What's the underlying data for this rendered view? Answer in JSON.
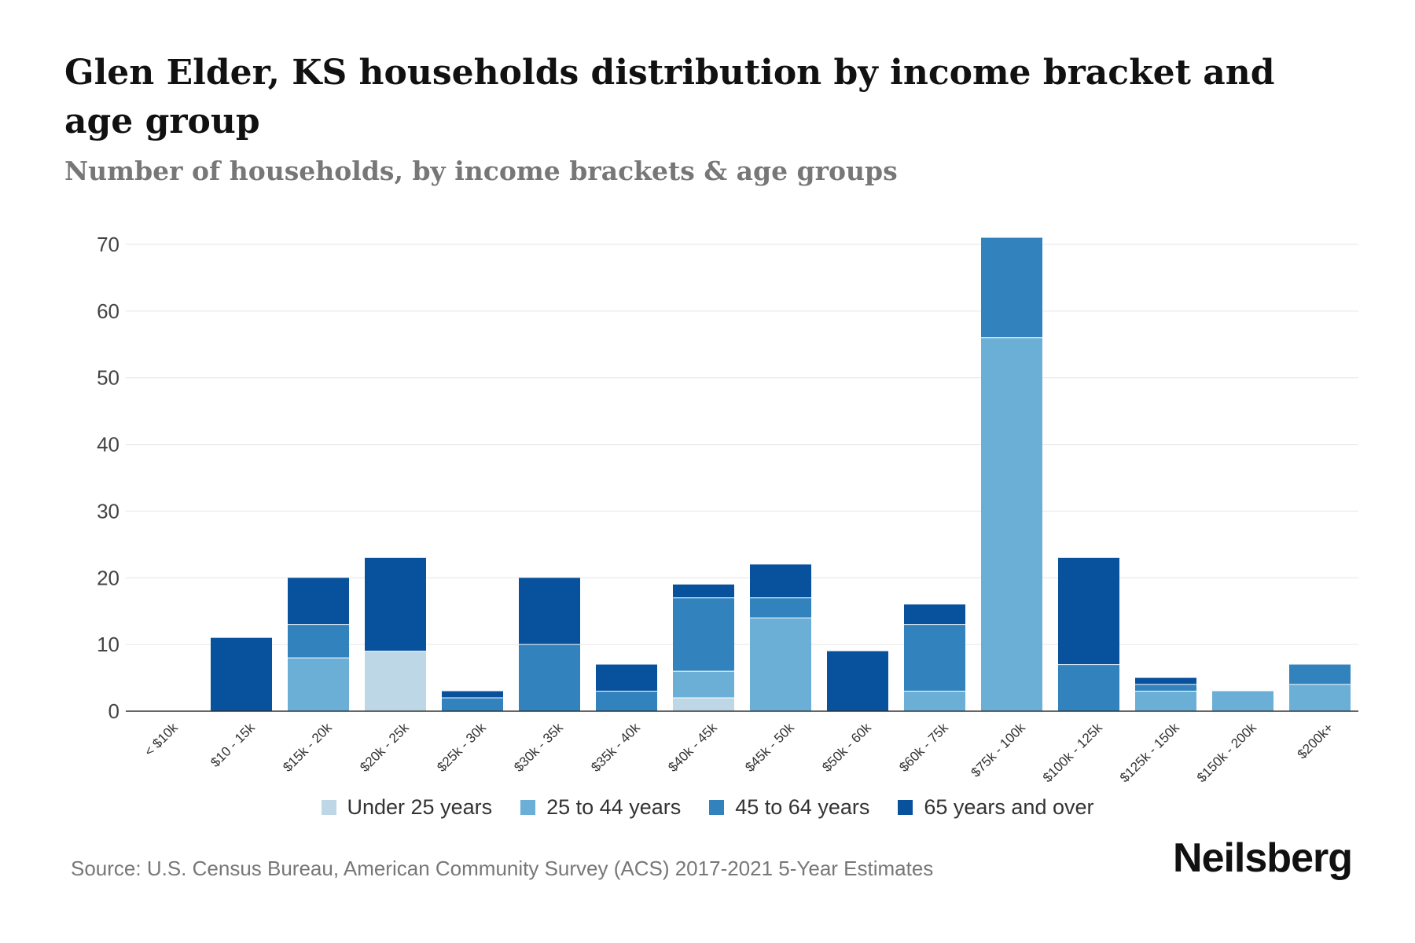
{
  "chart_data": {
    "type": "bar",
    "stacked": true,
    "title": "Glen Elder, KS households distribution by income bracket and age group",
    "subtitle": "Number of households, by income brackets & age groups",
    "xlabel": "",
    "ylabel": "",
    "ylim": [
      0,
      70
    ],
    "yticks": [
      0,
      10,
      20,
      30,
      40,
      50,
      60,
      70
    ],
    "grid": true,
    "legend_position": "bottom",
    "categories": [
      "< $10k",
      "$10 - 15k",
      "$15k - 20k",
      "$20k - 25k",
      "$25k - 30k",
      "$30k - 35k",
      "$35k - 40k",
      "$40k - 45k",
      "$45k - 50k",
      "$50k - 60k",
      "$60k - 75k",
      "$75k - 100k",
      "$100k - 125k",
      "$125k - 150k",
      "$150k - 200k",
      "$200k+"
    ],
    "series": [
      {
        "name": "Under 25 years",
        "color": "#bdd7e7",
        "values": [
          0,
          0,
          0,
          9,
          0,
          0,
          0,
          2,
          0,
          0,
          0,
          0,
          0,
          0,
          0,
          0
        ]
      },
      {
        "name": "25 to 44 years",
        "color": "#6baed6",
        "values": [
          0,
          0,
          8,
          0,
          0,
          0,
          0,
          4,
          14,
          0,
          3,
          56,
          0,
          3,
          3,
          4
        ]
      },
      {
        "name": "45 to 64 years",
        "color": "#3182bd",
        "values": [
          0,
          0,
          5,
          0,
          2,
          10,
          3,
          11,
          3,
          0,
          10,
          15,
          7,
          1,
          0,
          3
        ]
      },
      {
        "name": "65 years and over",
        "color": "#08519c",
        "values": [
          0,
          11,
          7,
          14,
          1,
          10,
          4,
          2,
          5,
          9,
          3,
          0,
          16,
          1,
          0,
          0
        ]
      }
    ]
  },
  "footer": {
    "source": "Source: U.S. Census Bureau, American Community Survey (ACS) 2017-2021 5-Year Estimates",
    "brand": "Neilsberg"
  }
}
